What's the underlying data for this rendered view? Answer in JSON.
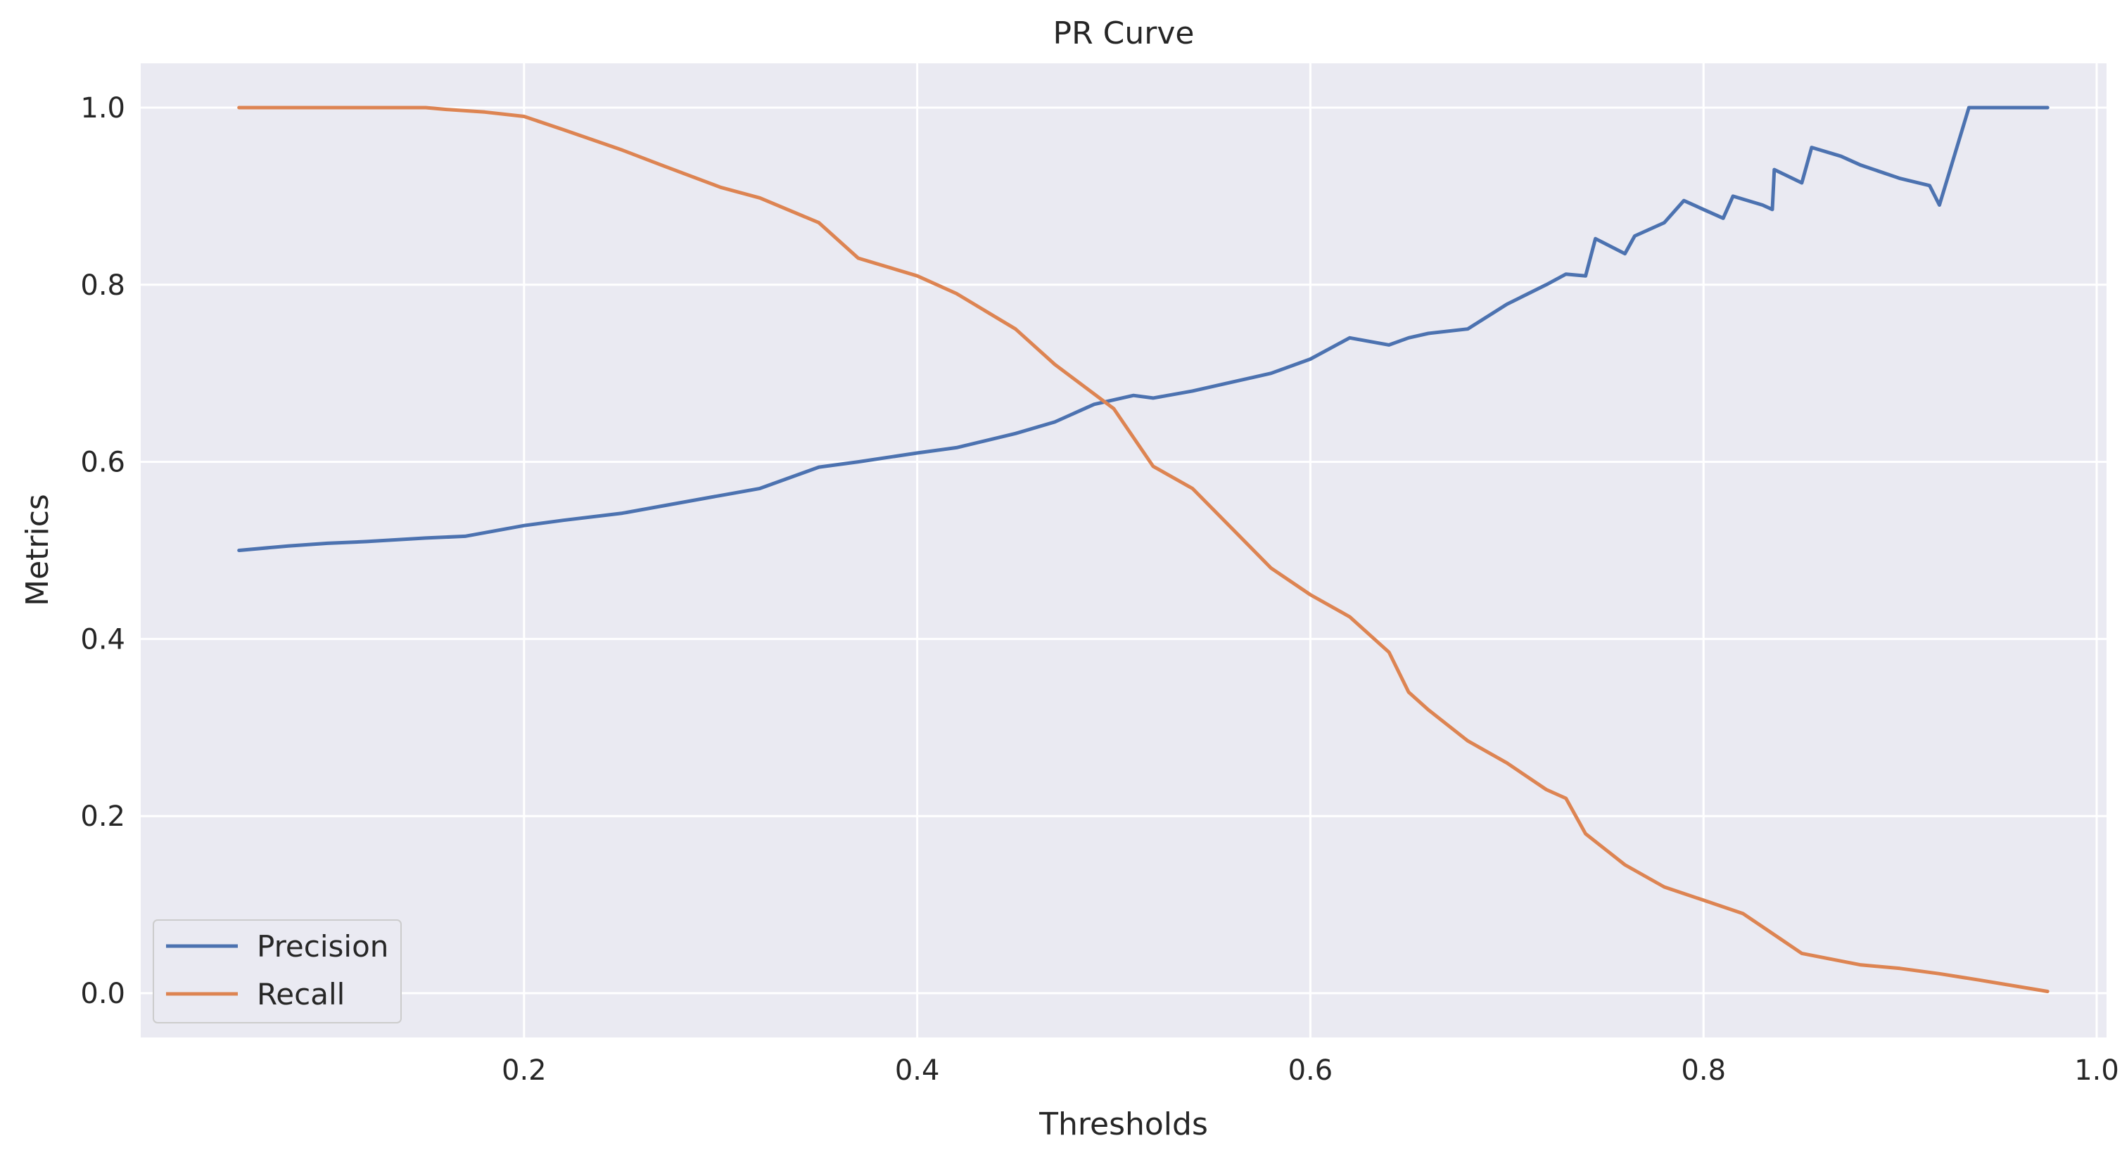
{
  "chart_data": {
    "type": "line",
    "title": "PR Curve",
    "xlabel": "Thresholds",
    "ylabel": "Metrics",
    "xlim": [
      0.005,
      1.005
    ],
    "ylim": [
      -0.05,
      1.05
    ],
    "xticks": [
      "0.2",
      "0.4",
      "0.6",
      "0.8",
      "1.0"
    ],
    "yticks": [
      "0.0",
      "0.2",
      "0.4",
      "0.6",
      "0.8",
      "1.0"
    ],
    "grid": true,
    "legend_position": "lower-left",
    "colors": {
      "background": "#EAEAF2",
      "grid": "#FFFFFF",
      "precision": "#4C72B0",
      "recall": "#DD8452"
    },
    "series": [
      {
        "name": "Precision",
        "x": [
          0.055,
          0.08,
          0.1,
          0.12,
          0.15,
          0.17,
          0.2,
          0.22,
          0.25,
          0.27,
          0.3,
          0.32,
          0.35,
          0.37,
          0.4,
          0.42,
          0.45,
          0.47,
          0.49,
          0.51,
          0.52,
          0.54,
          0.56,
          0.58,
          0.6,
          0.62,
          0.64,
          0.65,
          0.66,
          0.68,
          0.7,
          0.72,
          0.73,
          0.74,
          0.745,
          0.76,
          0.765,
          0.78,
          0.79,
          0.8,
          0.81,
          0.815,
          0.83,
          0.835,
          0.836,
          0.85,
          0.855,
          0.87,
          0.88,
          0.9,
          0.915,
          0.92,
          0.935,
          0.975
        ],
        "y": [
          0.5,
          0.505,
          0.508,
          0.51,
          0.514,
          0.516,
          0.528,
          0.534,
          0.542,
          0.55,
          0.562,
          0.57,
          0.594,
          0.6,
          0.61,
          0.616,
          0.632,
          0.645,
          0.665,
          0.675,
          0.672,
          0.68,
          0.69,
          0.7,
          0.716,
          0.74,
          0.732,
          0.74,
          0.745,
          0.75,
          0.778,
          0.8,
          0.812,
          0.81,
          0.852,
          0.835,
          0.855,
          0.87,
          0.895,
          0.885,
          0.875,
          0.9,
          0.89,
          0.885,
          0.93,
          0.915,
          0.955,
          0.945,
          0.935,
          0.92,
          0.912,
          0.89,
          1.0,
          1.0
        ]
      },
      {
        "name": "Recall",
        "x": [
          0.055,
          0.08,
          0.1,
          0.12,
          0.15,
          0.16,
          0.18,
          0.2,
          0.22,
          0.25,
          0.27,
          0.3,
          0.32,
          0.35,
          0.37,
          0.4,
          0.42,
          0.45,
          0.47,
          0.5,
          0.52,
          0.54,
          0.56,
          0.58,
          0.6,
          0.62,
          0.64,
          0.65,
          0.66,
          0.68,
          0.7,
          0.72,
          0.73,
          0.74,
          0.76,
          0.78,
          0.8,
          0.82,
          0.84,
          0.85,
          0.88,
          0.9,
          0.92,
          0.94,
          0.975
        ],
        "y": [
          1.0,
          1.0,
          1.0,
          1.0,
          1.0,
          0.998,
          0.995,
          0.99,
          0.975,
          0.952,
          0.935,
          0.91,
          0.898,
          0.87,
          0.83,
          0.81,
          0.79,
          0.75,
          0.71,
          0.66,
          0.595,
          0.57,
          0.525,
          0.48,
          0.45,
          0.425,
          0.385,
          0.34,
          0.32,
          0.285,
          0.26,
          0.23,
          0.22,
          0.18,
          0.145,
          0.12,
          0.105,
          0.09,
          0.06,
          0.045,
          0.032,
          0.028,
          0.022,
          0.015,
          0.002
        ]
      }
    ]
  }
}
